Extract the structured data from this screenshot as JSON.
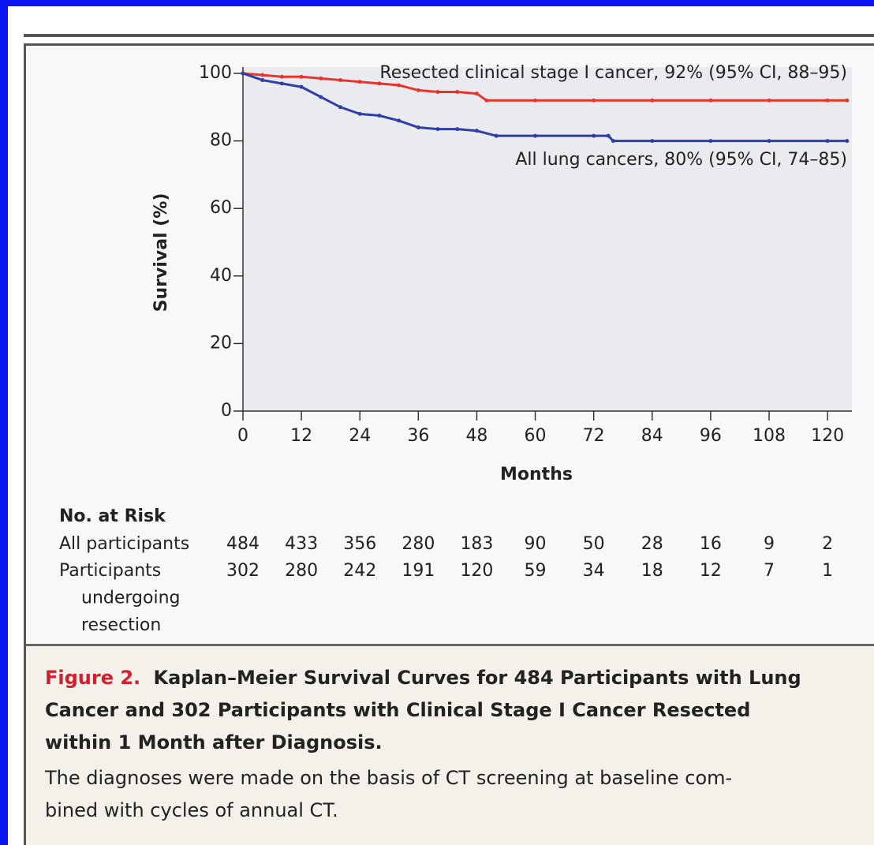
{
  "chart_data": {
    "type": "line",
    "x_label": "Months",
    "y_label": "Survival (%)",
    "xlim": [
      0,
      125
    ],
    "ylim": [
      0,
      100
    ],
    "xticks": [
      0,
      12,
      24,
      36,
      48,
      60,
      72,
      84,
      96,
      108,
      120
    ],
    "yticks": [
      0,
      20,
      40,
      60,
      80,
      100
    ],
    "series": [
      {
        "name": "Resected clinical stage I cancer, 92% (95% CI, 88–95)",
        "color": "#e8352b",
        "x": [
          0,
          4,
          8,
          12,
          16,
          20,
          24,
          28,
          32,
          36,
          40,
          44,
          48,
          50,
          60,
          72,
          84,
          96,
          108,
          120,
          124
        ],
        "values": [
          100,
          99.5,
          99,
          99,
          98.5,
          98,
          97.5,
          97,
          96.5,
          95,
          94.5,
          94.5,
          94,
          92,
          92,
          92,
          92,
          92,
          92,
          92,
          92
        ]
      },
      {
        "name": "All lung cancers, 80% (95% CI, 74–85)",
        "color": "#2f3fa6",
        "x": [
          0,
          4,
          8,
          12,
          16,
          20,
          24,
          28,
          32,
          36,
          40,
          44,
          48,
          52,
          60,
          72,
          75,
          76,
          84,
          96,
          108,
          120,
          124
        ],
        "values": [
          100,
          98,
          97,
          96,
          93,
          90,
          88,
          87.5,
          86,
          84,
          83.5,
          83.5,
          83,
          81.5,
          81.5,
          81.5,
          81.5,
          80,
          80,
          80,
          80,
          80,
          80
        ]
      }
    ]
  },
  "risk_table": {
    "title": "No. at Risk",
    "rows": [
      {
        "label": [
          "All participants"
        ],
        "values": [
          484,
          433,
          356,
          280,
          183,
          90,
          50,
          28,
          16,
          9,
          2
        ]
      },
      {
        "label": [
          "Participants",
          "undergoing",
          "resection"
        ],
        "values": [
          302,
          280,
          242,
          191,
          120,
          59,
          34,
          18,
          12,
          7,
          1
        ]
      }
    ]
  },
  "caption": {
    "label": "Figure 2.",
    "title": [
      "Kaplan–Meier Survival Curves for 484 Participants with Lung",
      "Cancer and 302 Participants with Clinical Stage I Cancer Resected",
      "within 1 Month after Diagnosis."
    ],
    "text": [
      "The diagnoses were made on the basis of CT screening at baseline com-",
      "bined with cycles of annual CT."
    ]
  }
}
